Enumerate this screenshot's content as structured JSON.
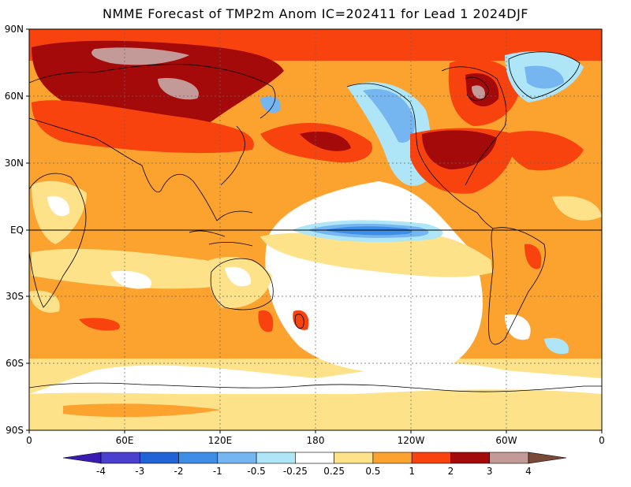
{
  "title": "NMME Forecast of TMP2m Anom IC=202411 for Lead 1 2024DJF",
  "map": {
    "projection": "equirectangular",
    "lon_range": [
      0,
      360
    ],
    "lat_range": [
      -90,
      90
    ],
    "lat_ticks": [
      "90N",
      "60N",
      "30N",
      "EQ",
      "30S",
      "60S",
      "90S"
    ],
    "lon_ticks": [
      "0",
      "60E",
      "120E",
      "180",
      "120W",
      "60W",
      "0"
    ],
    "equator_line": true,
    "grid": "dotted"
  },
  "colorbar": {
    "ticks": [
      "-4",
      "-3",
      "-2",
      "-1",
      "-0.5",
      "-0.25",
      "0.25",
      "0.5",
      "1",
      "2",
      "3",
      "4"
    ],
    "colors": [
      "#3a1db0",
      "#4b3fd0",
      "#1f63d6",
      "#3e8ee8",
      "#76b6f0",
      "#aee6f8",
      "#ffffff",
      "#fde28a",
      "#fca22e",
      "#f9430e",
      "#a40a0a",
      "#c49a98",
      "#7a4a38"
    ]
  },
  "palette": {
    "neutral": "#ffffff",
    "warm1": "#fde28a",
    "warm2": "#fca22e",
    "warm3": "#f9430e",
    "warm4": "#a40a0a",
    "warm5": "#c49a98",
    "cool1": "#aee6f8",
    "cool2": "#76b6f0",
    "cool3": "#3e8ee8",
    "cool4": "#1f63d6"
  }
}
